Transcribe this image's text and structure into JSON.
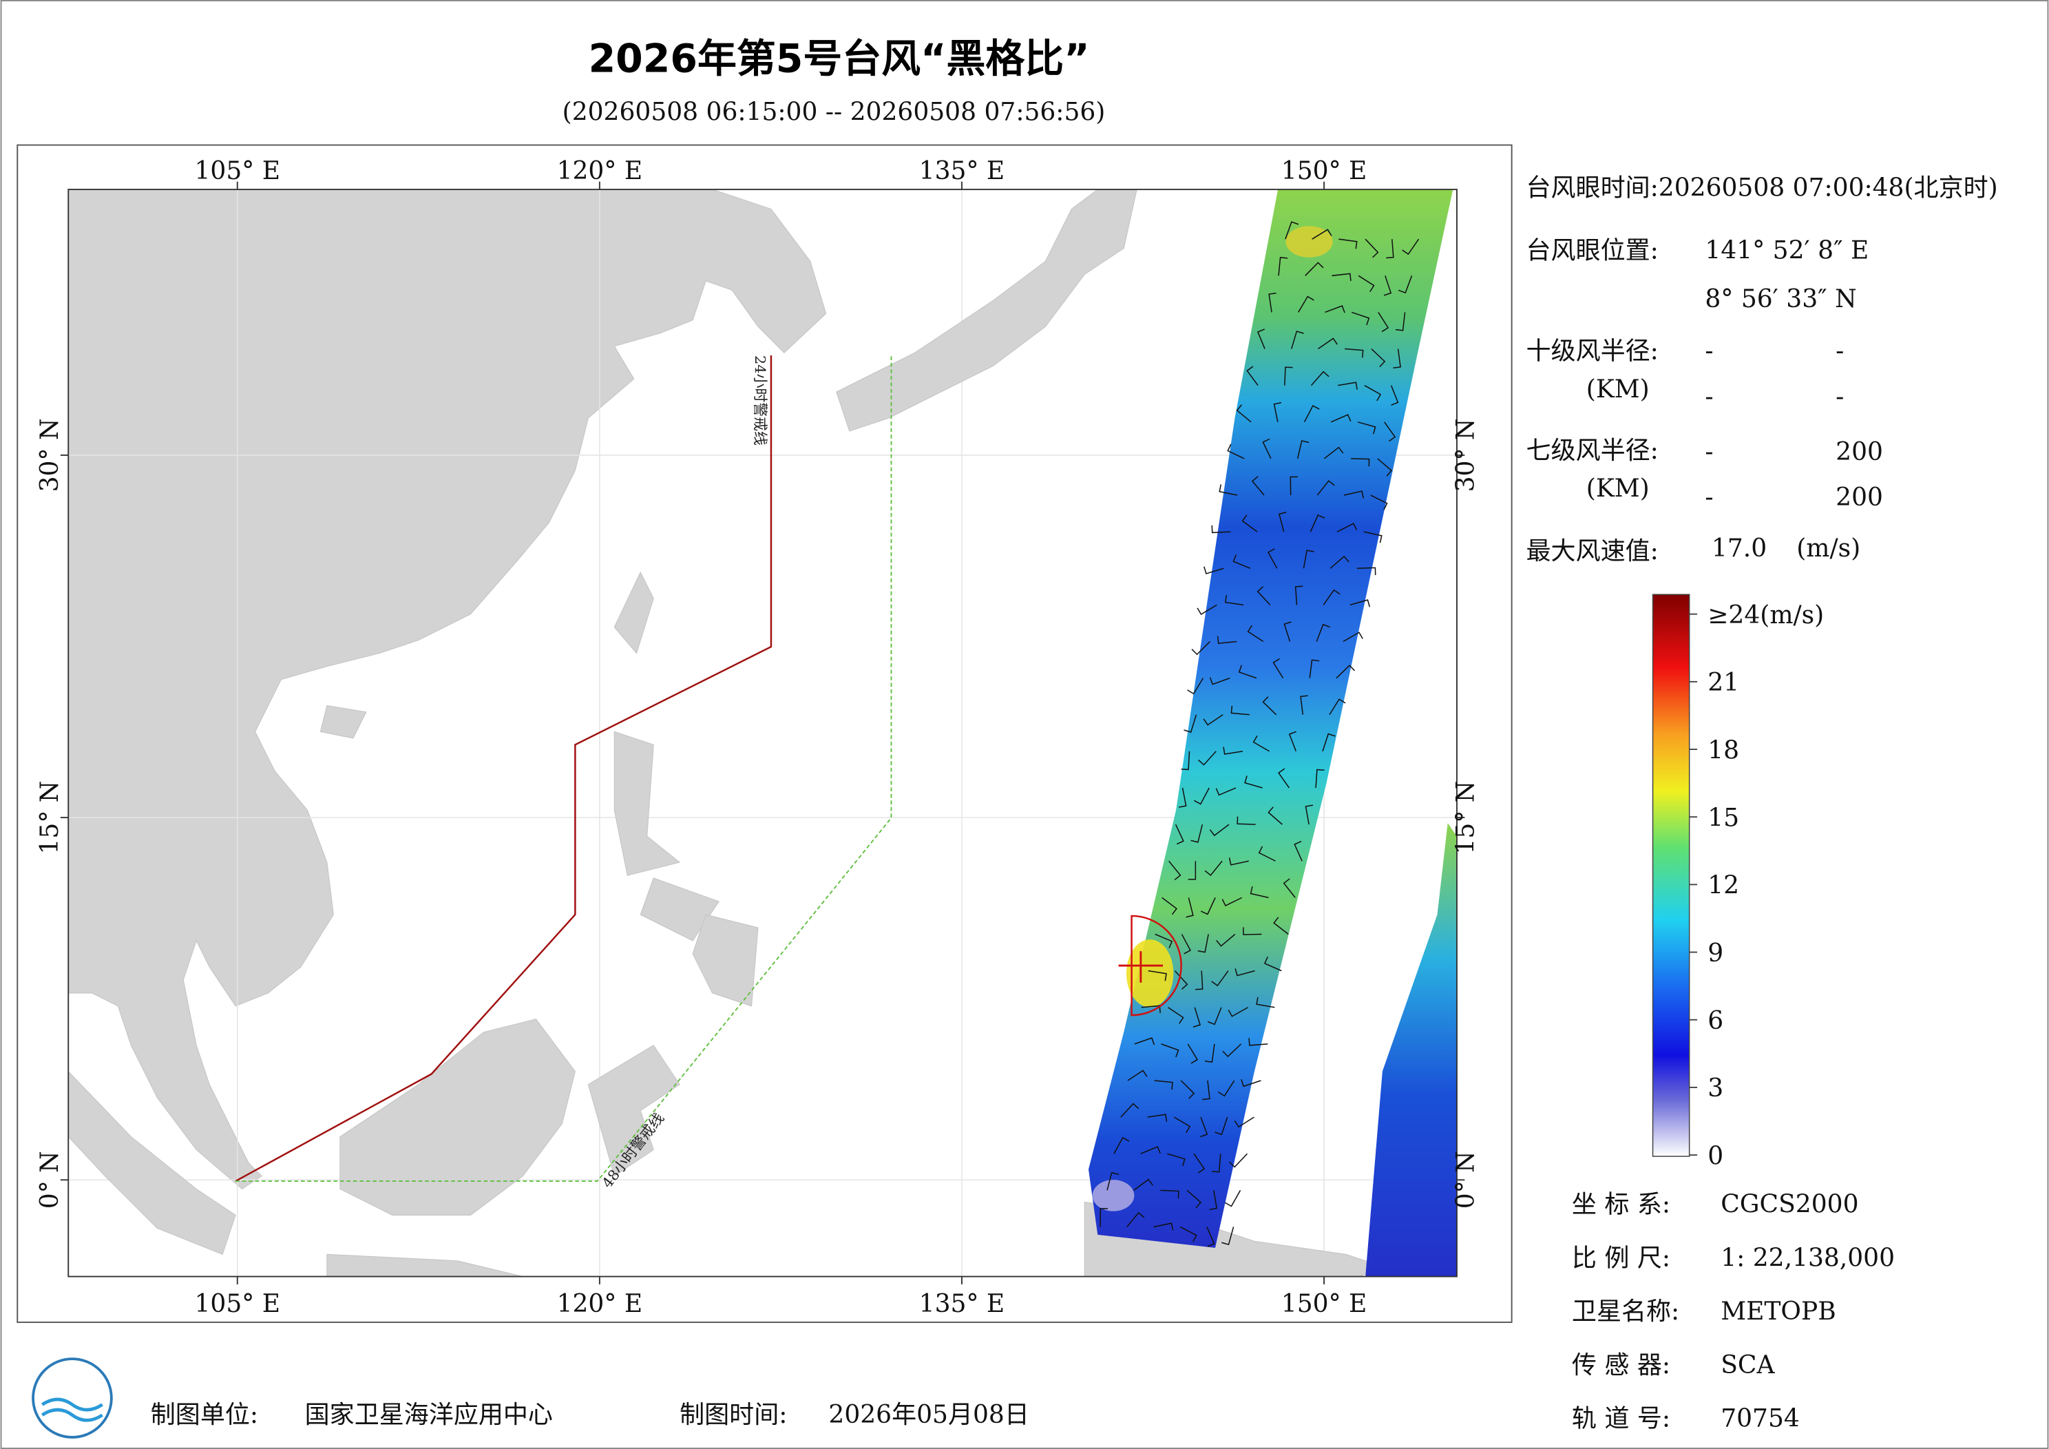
{
  "header": {
    "title": "2026年第5号台风“黑格比”",
    "subtitle": "(20260508 06:15:00 -- 20260508 07:56:56)"
  },
  "map": {
    "xlim": [
      98,
      155.5
    ],
    "ylim": [
      -4,
      41
    ],
    "xticks": [
      {
        "value": 105,
        "label": "105° E"
      },
      {
        "value": 120,
        "label": "120° E"
      },
      {
        "value": 135,
        "label": "135° E"
      },
      {
        "value": 150,
        "label": "150° E"
      }
    ],
    "yticks": [
      {
        "value": 0,
        "label": "0° N"
      },
      {
        "value": 15,
        "label": "15° N"
      },
      {
        "value": 30,
        "label": "30° N"
      }
    ],
    "warning_lines": [
      "24小时警戒线",
      "48小时警戒线"
    ]
  },
  "info": {
    "eye_time": "台风眼时间:20260508 07:00:48(北京时)",
    "eye_position": {
      "label": "台风眼位置:",
      "lon": "141° 52′ 8″ E",
      "lat": "8° 56′ 33″ N"
    },
    "radius_10": {
      "label": "十级风半径:",
      "unit": "(KM)",
      "values": [
        [
          "-",
          "-"
        ],
        [
          "-",
          "-"
        ]
      ]
    },
    "radius_7": {
      "label": "七级风半径:",
      "unit": "(KM)",
      "values": [
        [
          "-",
          "200"
        ],
        [
          "-",
          "200"
        ]
      ]
    },
    "max_wind": {
      "label": "最大风速值:",
      "value": "17.0",
      "unit": "(m/s)"
    }
  },
  "colorbar": {
    "lim": [
      0,
      24
    ],
    "ticks": [
      0,
      3,
      6,
      9,
      12,
      15,
      18,
      21,
      {
        "value": 24,
        "label": "≥24(m/s)"
      }
    ]
  },
  "meta": [
    {
      "label": "坐 标 系:",
      "value": "CGCS2000"
    },
    {
      "label": "比 例 尺:",
      "value": "1: 22,138,000"
    },
    {
      "label": "卫星名称:",
      "value": "METOPB"
    },
    {
      "label": "传 感 器:",
      "value": "SCA"
    },
    {
      "label": "轨 道 号:",
      "value": "70754"
    }
  ],
  "footer": {
    "unit_label": "制图单位:",
    "unit": "国家卫星海洋应用中心",
    "time_label": "制图时间:",
    "time": "2026年05月08日"
  }
}
